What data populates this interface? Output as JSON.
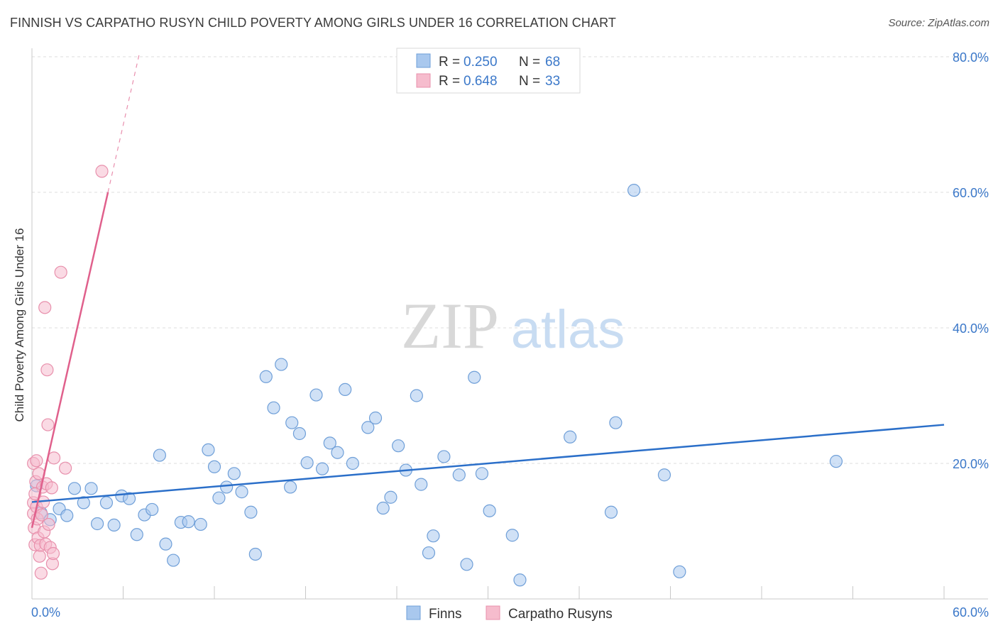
{
  "title": "FINNISH VS CARPATHO RUSYN CHILD POVERTY AMONG GIRLS UNDER 16 CORRELATION CHART",
  "source": "Source: ZipAtlas.com",
  "watermark": {
    "zip": "ZIP",
    "atlas": "atlas"
  },
  "colors": {
    "finns_fill": "#a9c8ee",
    "finns_stroke": "#6f9fd8",
    "finns_line": "#2b6fc9",
    "rusyn_fill": "#f6bccd",
    "rusyn_stroke": "#e890ac",
    "rusyn_line": "#e0608c",
    "axis_text": "#3b78c9",
    "grid": "#dcdcdc"
  },
  "legend_top": [
    {
      "r_label": "R = ",
      "r_value": "0.250",
      "n_label": "N = ",
      "n_value": "68"
    },
    {
      "r_label": "R = ",
      "r_value": "0.648",
      "n_label": "N = ",
      "n_value": "33"
    }
  ],
  "legend_bottom": [
    "Finns",
    "Carpatho Rusyns"
  ],
  "chart_data": {
    "type": "scatter",
    "title": "FINNISH VS CARPATHO RUSYN CHILD POVERTY AMONG GIRLS UNDER 16 CORRELATION CHART",
    "xlabel": "",
    "ylabel": "Child Poverty Among Girls Under 16",
    "xlim": [
      0,
      60
    ],
    "ylim": [
      0,
      80
    ],
    "x_tick_labels": [
      "0.0%",
      "60.0%"
    ],
    "y_tick_labels": [
      "20.0%",
      "40.0%",
      "60.0%",
      "80.0%"
    ],
    "y_tick_values": [
      20,
      40,
      60,
      80
    ],
    "grid": true,
    "series": [
      {
        "name": "Finns",
        "r": 0.25,
        "n": 68,
        "trend": {
          "x": [
            0,
            60
          ],
          "y": [
            14.3,
            25.7
          ]
        },
        "points": [
          [
            0.3,
            16.7
          ],
          [
            0.6,
            12.7
          ],
          [
            1.2,
            11.7
          ],
          [
            1.8,
            13.3
          ],
          [
            2.3,
            12.3
          ],
          [
            2.8,
            16.3
          ],
          [
            3.4,
            14.2
          ],
          [
            3.9,
            16.3
          ],
          [
            4.3,
            11.1
          ],
          [
            4.9,
            14.2
          ],
          [
            5.4,
            10.9
          ],
          [
            5.9,
            15.2
          ],
          [
            6.4,
            14.8
          ],
          [
            6.9,
            9.5
          ],
          [
            7.4,
            12.4
          ],
          [
            7.9,
            13.2
          ],
          [
            8.4,
            21.2
          ],
          [
            8.8,
            8.1
          ],
          [
            9.3,
            5.7
          ],
          [
            9.8,
            11.3
          ],
          [
            10.3,
            11.4
          ],
          [
            11.1,
            11.0
          ],
          [
            11.6,
            22.0
          ],
          [
            12.0,
            19.5
          ],
          [
            12.3,
            14.9
          ],
          [
            12.8,
            16.5
          ],
          [
            13.3,
            18.5
          ],
          [
            13.8,
            15.8
          ],
          [
            14.4,
            12.8
          ],
          [
            14.7,
            6.6
          ],
          [
            15.4,
            32.8
          ],
          [
            15.9,
            28.2
          ],
          [
            16.4,
            34.6
          ],
          [
            17.0,
            16.5
          ],
          [
            17.1,
            26.0
          ],
          [
            17.6,
            24.4
          ],
          [
            18.1,
            20.1
          ],
          [
            18.7,
            30.1
          ],
          [
            19.1,
            19.2
          ],
          [
            19.6,
            23.0
          ],
          [
            20.1,
            21.6
          ],
          [
            20.6,
            30.9
          ],
          [
            21.1,
            20.0
          ],
          [
            22.1,
            25.3
          ],
          [
            22.6,
            26.7
          ],
          [
            23.1,
            13.4
          ],
          [
            23.6,
            15.0
          ],
          [
            24.1,
            22.6
          ],
          [
            24.6,
            19.0
          ],
          [
            25.3,
            30.0
          ],
          [
            25.6,
            16.9
          ],
          [
            26.1,
            6.8
          ],
          [
            26.4,
            9.3
          ],
          [
            27.1,
            21.0
          ],
          [
            28.1,
            18.3
          ],
          [
            28.6,
            5.1
          ],
          [
            29.1,
            32.7
          ],
          [
            29.6,
            18.5
          ],
          [
            30.1,
            13.0
          ],
          [
            31.6,
            9.4
          ],
          [
            32.1,
            2.8
          ],
          [
            35.4,
            23.9
          ],
          [
            38.1,
            12.8
          ],
          [
            38.4,
            26.0
          ],
          [
            39.6,
            60.3
          ],
          [
            41.6,
            18.3
          ],
          [
            42.6,
            4.0
          ],
          [
            52.9,
            20.3
          ]
        ]
      },
      {
        "name": "Carpatho Rusyns",
        "r": 0.648,
        "n": 33,
        "trend": {
          "x": [
            0,
            5.0
          ],
          "y": [
            10.5,
            60.0
          ]
        },
        "trend_dashed": {
          "x": [
            5.0,
            7.1
          ],
          "y": [
            60.0,
            80.8
          ]
        },
        "points": [
          [
            0.1,
            20.0
          ],
          [
            0.1,
            14.2
          ],
          [
            0.1,
            12.6
          ],
          [
            0.15,
            10.5
          ],
          [
            0.2,
            8.0
          ],
          [
            0.25,
            17.3
          ],
          [
            0.3,
            20.4
          ],
          [
            0.3,
            13.6
          ],
          [
            0.35,
            11.8
          ],
          [
            0.4,
            9.0
          ],
          [
            0.45,
            18.5
          ],
          [
            0.5,
            6.3
          ],
          [
            0.55,
            7.9
          ],
          [
            0.6,
            3.8
          ],
          [
            0.65,
            12.4
          ],
          [
            0.7,
            16.5
          ],
          [
            0.75,
            14.3
          ],
          [
            0.8,
            9.9
          ],
          [
            0.85,
            43.0
          ],
          [
            0.9,
            8.1
          ],
          [
            0.95,
            17.0
          ],
          [
            1.0,
            33.8
          ],
          [
            1.05,
            25.7
          ],
          [
            1.1,
            11.0
          ],
          [
            1.2,
            7.6
          ],
          [
            1.3,
            16.4
          ],
          [
            1.35,
            5.2
          ],
          [
            1.4,
            6.7
          ],
          [
            1.45,
            20.8
          ],
          [
            1.9,
            48.2
          ],
          [
            2.2,
            19.3
          ],
          [
            4.6,
            63.1
          ],
          [
            0.2,
            15.5
          ]
        ]
      }
    ]
  }
}
